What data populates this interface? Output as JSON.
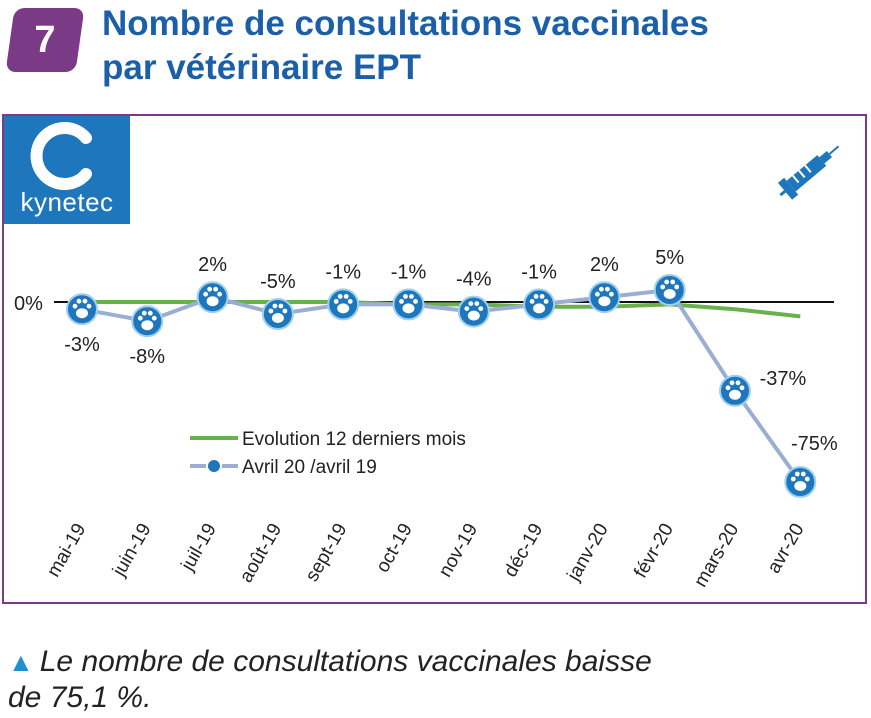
{
  "header": {
    "badge": "7",
    "title_line1": "Nombre de consultations vaccinales",
    "title_line2": "par vétérinaire EPT"
  },
  "logo": {
    "name": "kynetec"
  },
  "caption": {
    "marker": "▲",
    "line1": "Le nombre de consultations vaccinales baisse",
    "line2": "de 75,1 %."
  },
  "chart_data": {
    "type": "line",
    "categories": [
      "mai-19",
      "juin-19",
      "juil-19",
      "août-19",
      "sept-19",
      "oct-19",
      "nov-19",
      "déc-19",
      "janv-20",
      "févr-20",
      "mars-20",
      "avr-20"
    ],
    "zero_label": "0%",
    "series": [
      {
        "name": "Evolution 12 derniers mois",
        "color": "#6ab04c",
        "values": [
          0,
          0,
          0,
          0,
          0,
          -1,
          -1,
          -2,
          -2,
          -1,
          -3,
          -6
        ]
      },
      {
        "name": "Avril 20 /avril 19",
        "color": "#9aaed4",
        "marker": "paw-icon",
        "values": [
          -3,
          -8,
          2,
          -5,
          -1,
          -1,
          -4,
          -1,
          2,
          5,
          -37,
          -75
        ],
        "labels": [
          "-3%",
          "-8%",
          "2%",
          "-5%",
          "-1%",
          "-1%",
          "-4%",
          "-1%",
          "2%",
          "5%",
          "-37%",
          "-75%"
        ]
      }
    ],
    "legend": "center-left",
    "grid": false
  }
}
